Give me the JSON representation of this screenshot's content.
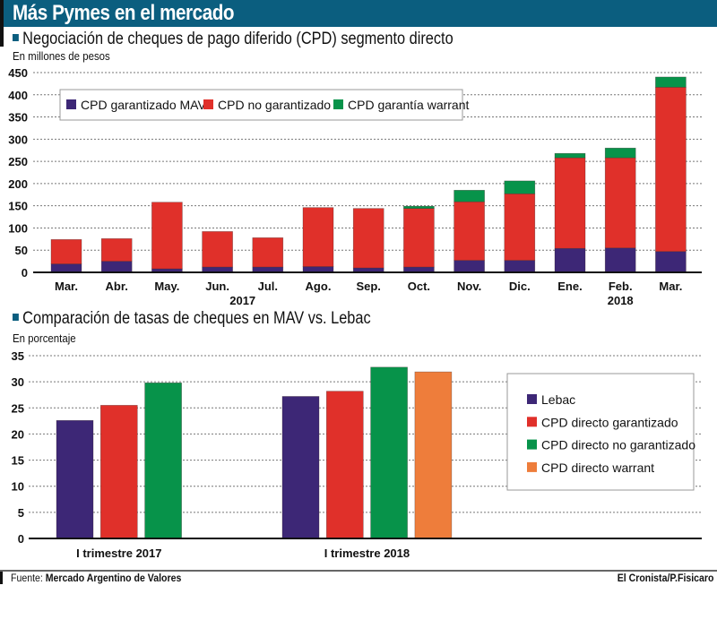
{
  "header": {
    "title": "Más Pymes en el mercado"
  },
  "colors": {
    "header": "#0b5e7f",
    "purple": "#3d2776",
    "red": "#e0302a",
    "green": "#07934a",
    "orange": "#ee7d3b"
  },
  "chart_data": [
    {
      "type": "bar",
      "stacked": true,
      "title": "Negociación de cheques de pago diferido (CPD) segmento directo",
      "ylabel": "En millones de pesos",
      "xlabel": "",
      "ylim": [
        0,
        450
      ],
      "yticks": [
        0,
        50,
        100,
        150,
        200,
        250,
        300,
        350,
        400,
        450
      ],
      "grid": true,
      "legend_position": "top-left",
      "categories": [
        "Mar.",
        "Abr.",
        "May.",
        "Jun.",
        "Jul.",
        "Ago.",
        "Sep.",
        "Oct.",
        "Nov.",
        "Dic.",
        "Ene.",
        "Feb.",
        "Mar."
      ],
      "year_labels": [
        {
          "label": "2017",
          "under_category_index": 3.5
        },
        {
          "label": "2018",
          "under_category_index": 11
        }
      ],
      "series": [
        {
          "name": "CPD garantizado MAV",
          "color": "#3d2776",
          "values": [
            19,
            25,
            8,
            12,
            12,
            13,
            10,
            12,
            27,
            27,
            54,
            55,
            47
          ]
        },
        {
          "name": "CPD no garantizado",
          "color": "#e0302a",
          "values": [
            55,
            51,
            150,
            80,
            66,
            133,
            134,
            132,
            132,
            150,
            204,
            203,
            370
          ]
        },
        {
          "name": "CPD garantía warrant",
          "color": "#07934a",
          "values": [
            0,
            0,
            0,
            0,
            0,
            0,
            0,
            5,
            26,
            29,
            10,
            22,
            23
          ]
        }
      ]
    },
    {
      "type": "bar",
      "stacked": false,
      "title": "Comparación de tasas de cheques en MAV vs. Lebac",
      "ylabel": "En porcentaje",
      "xlabel": "",
      "ylim": [
        0,
        35
      ],
      "yticks": [
        0,
        5,
        10,
        15,
        20,
        25,
        30,
        35
      ],
      "grid": true,
      "legend_position": "right",
      "categories": [
        "I trimestre 2017",
        "I trimestre 2018"
      ],
      "series": [
        {
          "name": "Lebac",
          "color": "#3d2776",
          "values": [
            22.6,
            27.2
          ]
        },
        {
          "name": "CPD directo garantizado",
          "color": "#e0302a",
          "values": [
            25.5,
            28.2
          ]
        },
        {
          "name": "CPD directo no garantizado",
          "color": "#07934a",
          "values": [
            29.8,
            32.8
          ]
        },
        {
          "name": "CPD directo warrant",
          "color": "#ee7d3b",
          "values": [
            null,
            31.9
          ]
        }
      ]
    }
  ],
  "footer": {
    "source_prefix": "Fuente: ",
    "source": "Mercado Argentino de Valores",
    "credit": "El Cronista/P.Fisicaro"
  }
}
